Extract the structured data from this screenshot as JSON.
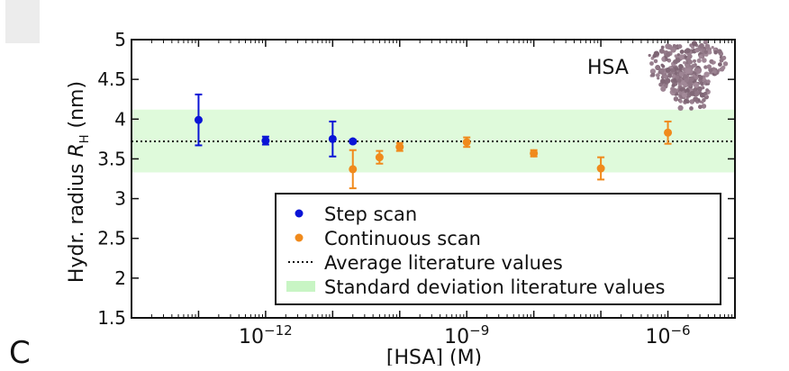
{
  "panel_label": "C",
  "chart_data": {
    "type": "scatter",
    "title": "",
    "xlabel": "[HSA] (M)",
    "ylabel": "Hydr. radius R_H (nm)",
    "ylabel_parts": {
      "main": "Hydr. radius ",
      "symbol": "R",
      "subscript": "H",
      "unit": " (nm)"
    },
    "x_scale": "log",
    "xlim": [
      1e-14,
      1e-05
    ],
    "ylim": [
      1.5,
      5
    ],
    "x_ticks": [
      {
        "value": 1e-12,
        "mantissa": "10",
        "exponent": "−12"
      },
      {
        "value": 1e-09,
        "mantissa": "10",
        "exponent": "−9"
      },
      {
        "value": 1e-06,
        "mantissa": "10",
        "exponent": "−6"
      }
    ],
    "y_ticks": [
      "1.5",
      "2",
      "2.5",
      "3",
      "3.5",
      "4",
      "4.5",
      "5"
    ],
    "annotation": "HSA",
    "literature_average": 3.72,
    "literature_band": [
      3.33,
      4.12
    ],
    "series": [
      {
        "name": "Step scan",
        "color": "#0a14d6",
        "points": [
          {
            "x": 1e-13,
            "y": 3.99,
            "err": 0.32
          },
          {
            "x": 1e-12,
            "y": 3.73,
            "err": 0.05
          },
          {
            "x": 1e-11,
            "y": 3.75,
            "err": 0.22
          },
          {
            "x": 2e-11,
            "y": 3.72,
            "err": 0.02
          }
        ]
      },
      {
        "name": "Continuous scan",
        "color": "#f08a1c",
        "points": [
          {
            "x": 2e-11,
            "y": 3.37,
            "err": 0.24
          },
          {
            "x": 5e-11,
            "y": 3.52,
            "err": 0.08
          },
          {
            "x": 1e-10,
            "y": 3.65,
            "err": 0.05
          },
          {
            "x": 1e-09,
            "y": 3.71,
            "err": 0.06
          },
          {
            "x": 1e-08,
            "y": 3.57,
            "err": 0.04
          },
          {
            "x": 1e-07,
            "y": 3.38,
            "err": 0.14
          },
          {
            "x": 1e-06,
            "y": 3.83,
            "err": 0.14
          }
        ]
      }
    ],
    "legend": {
      "position": "lower-right",
      "entries": [
        {
          "label": "Step scan",
          "style": "dot",
          "color": "#0a14d6"
        },
        {
          "label": "Continuous scan",
          "style": "dot",
          "color": "#f08a1c"
        },
        {
          "label": "Average literature values",
          "style": "dotted-line",
          "color": "#111111"
        },
        {
          "label": "Standard deviation literature values",
          "style": "band",
          "color": "#c8f5c4"
        }
      ]
    },
    "band_color": "#dffadb",
    "protein_color": "#9a7f8c"
  }
}
